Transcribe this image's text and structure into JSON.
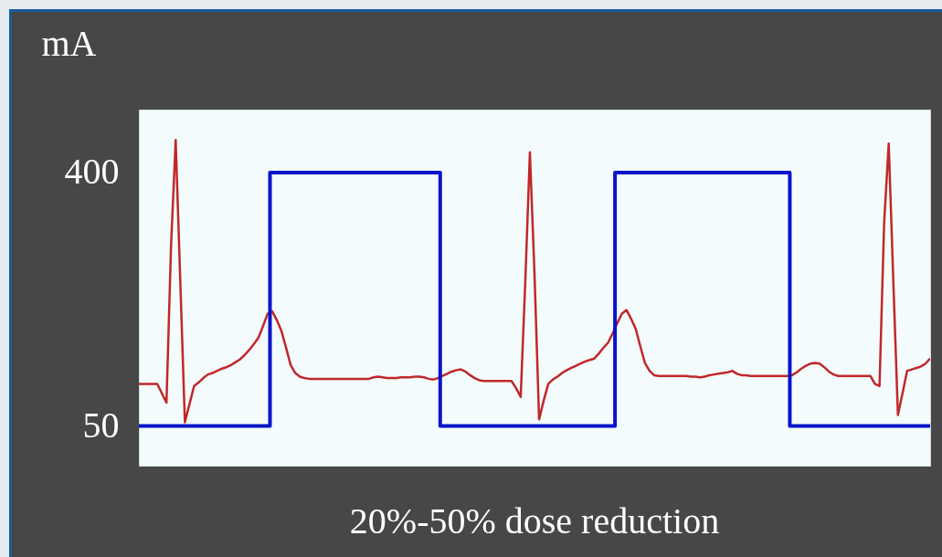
{
  "chart_data": {
    "type": "line",
    "title": "20%-50% dose reduction",
    "ylabel": "mA",
    "categories": [
      null,
      null,
      null,
      null,
      null,
      null,
      null,
      null,
      null,
      null,
      null,
      null,
      null,
      null,
      null,
      null,
      null,
      null,
      null,
      null,
      null,
      null,
      null,
      null,
      null,
      null,
      null,
      null,
      null,
      null,
      null,
      null,
      null,
      null,
      null,
      null,
      null,
      null,
      null,
      null,
      null,
      null,
      null,
      null,
      null,
      null,
      null,
      null,
      null,
      null,
      null,
      null,
      null,
      null,
      null,
      null,
      null,
      null,
      null,
      null,
      null,
      null,
      null,
      null,
      null,
      null,
      null,
      null,
      null,
      null,
      null,
      null,
      null,
      null,
      null,
      null,
      null,
      null,
      null,
      null,
      null,
      null,
      null,
      null,
      null,
      null,
      null,
      null,
      null,
      null,
      null,
      null,
      null,
      null,
      null,
      null,
      null,
      null,
      null,
      null,
      null,
      null,
      null,
      null,
      null,
      null,
      null,
      null,
      null,
      null,
      null,
      null,
      null,
      null,
      null,
      null,
      null,
      null,
      null,
      null,
      null,
      null,
      null,
      null,
      null,
      null,
      null,
      null,
      null,
      null,
      null,
      null,
      null,
      null,
      null,
      null,
      null,
      null,
      null,
      null,
      null,
      null,
      null,
      null,
      null,
      null,
      null,
      null,
      null,
      null,
      null,
      null,
      null,
      null,
      null,
      null,
      null,
      null,
      null,
      null,
      null,
      null,
      null,
      null,
      null,
      null,
      null,
      null,
      null,
      null,
      null,
      null,
      null
    ],
    "series": [
      {
        "color": "#c0282a",
        "values": [
          108,
          108,
          108,
          108,
          108,
          95,
          82,
          300,
          445,
          250,
          55,
          80,
          105,
          110,
          116,
          121,
          123,
          126,
          129,
          131,
          134,
          138,
          142,
          148,
          155,
          163,
          172,
          188,
          205,
          208,
          196,
          181,
          158,
          134,
          123,
          118,
          116,
          115,
          115,
          115,
          115,
          115,
          115,
          115,
          115,
          115,
          115,
          115,
          115,
          115,
          115,
          117,
          118,
          117,
          116,
          116,
          116,
          117,
          117,
          117,
          118,
          118,
          117,
          115,
          114,
          116,
          119,
          122,
          125,
          127,
          128,
          125,
          120,
          116,
          113,
          112,
          112,
          112,
          112,
          112,
          112,
          112,
          102,
          90,
          250,
          428,
          260,
          59,
          85,
          108,
          114,
          118,
          123,
          127,
          130,
          133,
          136,
          139,
          141,
          143,
          150,
          158,
          165,
          178,
          192,
          205,
          210,
          198,
          184,
          160,
          137,
          126,
          120,
          119,
          119,
          119,
          119,
          119,
          119,
          119,
          118,
          118,
          117,
          118,
          120,
          121,
          122,
          123,
          124,
          126,
          122,
          120,
          120,
          119,
          119,
          119,
          119,
          119,
          119,
          119,
          119,
          119,
          120,
          124,
          129,
          133,
          136,
          137,
          136,
          131,
          125,
          121,
          119,
          119,
          119,
          119,
          119,
          119,
          119,
          119,
          108,
          105,
          330,
          440,
          250,
          65,
          95,
          126,
          128,
          130,
          132,
          136,
          143
        ]
      },
      {
        "type": "step",
        "color": "#0a14c8",
        "values": [
          50,
          50,
          50,
          50,
          50,
          50,
          50,
          50,
          50,
          50,
          50,
          50,
          50,
          50,
          50,
          50,
          50,
          50,
          50,
          50,
          50,
          50,
          50,
          50,
          50,
          50,
          50,
          50,
          50,
          400,
          400,
          400,
          400,
          400,
          400,
          400,
          400,
          400,
          400,
          400,
          400,
          400,
          400,
          400,
          400,
          400,
          400,
          400,
          400,
          400,
          400,
          400,
          400,
          400,
          400,
          400,
          400,
          400,
          400,
          400,
          400,
          400,
          400,
          400,
          400,
          400,
          50,
          50,
          50,
          50,
          50,
          50,
          50,
          50,
          50,
          50,
          50,
          50,
          50,
          50,
          50,
          50,
          50,
          50,
          50,
          50,
          50,
          50,
          50,
          50,
          50,
          50,
          50,
          50,
          50,
          50,
          50,
          50,
          50,
          50,
          50,
          50,
          50,
          50,
          400,
          400,
          400,
          400,
          400,
          400,
          400,
          400,
          400,
          400,
          400,
          400,
          400,
          400,
          400,
          400,
          400,
          400,
          400,
          400,
          400,
          400,
          400,
          400,
          400,
          400,
          400,
          400,
          400,
          400,
          400,
          400,
          400,
          400,
          400,
          400,
          400,
          400,
          50,
          50,
          50,
          50,
          50,
          50,
          50,
          50,
          50,
          50,
          50,
          50,
          50,
          50,
          50,
          50,
          50,
          50,
          50,
          50,
          50,
          50,
          50,
          50,
          50,
          50,
          50,
          50,
          50,
          50,
          50
        ]
      }
    ],
    "ylim": [
      -5,
      487
    ],
    "yticks": [
      50,
      400
    ],
    "marker": "none",
    "line_style": "solid"
  }
}
